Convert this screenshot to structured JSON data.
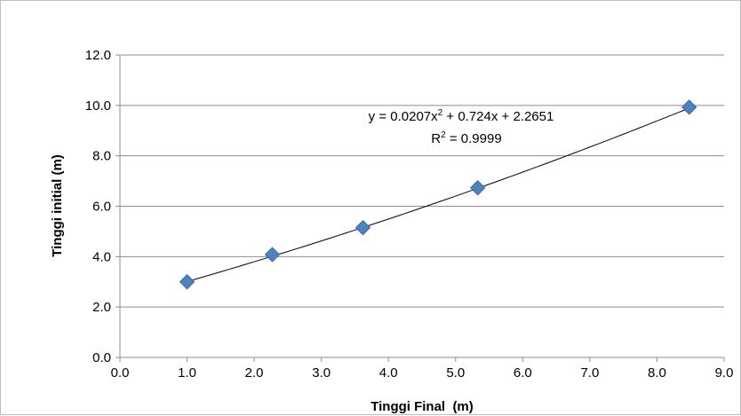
{
  "chart_data": {
    "type": "scatter",
    "xlabel": "Tinggi Final  (m)",
    "ylabel": "Tinggi initial (m)",
    "xlim": [
      0,
      9
    ],
    "ylim": [
      0,
      12
    ],
    "x_ticks": [
      "0.0",
      "1.0",
      "2.0",
      "3.0",
      "4.0",
      "5.0",
      "6.0",
      "7.0",
      "8.0",
      "9.0"
    ],
    "y_ticks": [
      "0.0",
      "2.0",
      "4.0",
      "6.0",
      "8.0",
      "10.0",
      "12.0"
    ],
    "grid": "horizontal",
    "marker": "diamond",
    "colors": {
      "marker": "#4f81bd",
      "marker_edge": "#3b6aa6",
      "trendline": "#000000",
      "gridline": "#8c8c8c"
    },
    "series": [
      {
        "points": [
          {
            "x": 1.0,
            "y": 3.0
          },
          {
            "x": 2.27,
            "y": 4.08
          },
          {
            "x": 3.62,
            "y": 5.15
          },
          {
            "x": 5.33,
            "y": 6.73
          },
          {
            "x": 8.48,
            "y": 9.93
          }
        ]
      }
    ],
    "trendline": {
      "type": "polynomial",
      "coefficients": [
        0.0207,
        0.724,
        2.2651
      ],
      "x_range": [
        1.0,
        8.48
      ],
      "equation_prefix": "y = 0.0207x",
      "equation_sup": "2",
      "equation_suffix": " + 0.724x + 2.2651",
      "r2_prefix": "R",
      "r2_sup": "2",
      "r2_suffix": " = 0.9999"
    }
  }
}
